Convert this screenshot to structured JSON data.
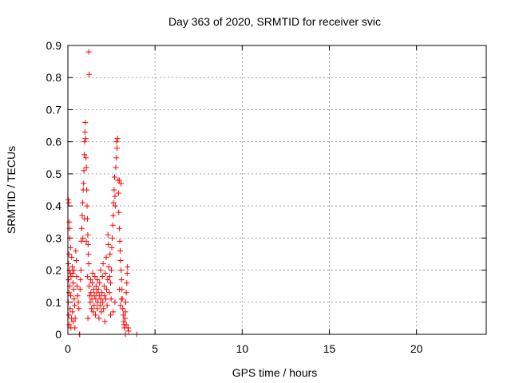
{
  "chart_data": {
    "type": "scatter",
    "title": "Day 363 of 2020, SRMTID for receiver svic",
    "xlabel": "GPS time / hours",
    "ylabel": "SRMTID / TECUs",
    "xlim": [
      0,
      24
    ],
    "ylim": [
      0,
      0.9
    ],
    "xticks": [
      0,
      5,
      10,
      15,
      20
    ],
    "xtick_labels": [
      "0",
      "5",
      "10",
      "15",
      "20"
    ],
    "yticks": [
      0,
      0.1,
      0.2,
      0.3,
      0.4,
      0.5,
      0.6,
      0.7,
      0.8,
      0.9
    ],
    "ytick_labels": [
      "0",
      "0.1",
      "0.2",
      "0.3",
      "0.4",
      "0.5",
      "0.6",
      "0.7",
      "0.8",
      "0.9"
    ],
    "grid": true,
    "marker": "+",
    "color": "#ff0000",
    "series": [
      {
        "name": "svic",
        "points": [
          [
            0.02,
            0.42
          ],
          [
            0.05,
            0.41
          ],
          [
            0.08,
            0.35
          ],
          [
            0.1,
            0.33
          ],
          [
            0.12,
            0.3
          ],
          [
            0.15,
            0.27
          ],
          [
            0.06,
            0.25
          ],
          [
            0.03,
            0.22
          ],
          [
            0.09,
            0.2
          ],
          [
            0.14,
            0.19
          ],
          [
            0.18,
            0.18
          ],
          [
            0.04,
            0.17
          ],
          [
            0.11,
            0.15
          ],
          [
            0.07,
            0.13
          ],
          [
            0.16,
            0.12
          ],
          [
            0.02,
            0.1
          ],
          [
            0.13,
            0.08
          ],
          [
            0.05,
            0.06
          ],
          [
            0.2,
            0.05
          ],
          [
            0.08,
            0.03
          ],
          [
            0.17,
            0.02
          ],
          [
            0.22,
            0.24
          ],
          [
            0.25,
            0.21
          ],
          [
            0.28,
            0.19
          ],
          [
            0.3,
            0.16
          ],
          [
            0.33,
            0.14
          ],
          [
            0.36,
            0.11
          ],
          [
            0.39,
            0.09
          ],
          [
            0.26,
            0.07
          ],
          [
            0.42,
            0.05
          ],
          [
            0.45,
            0.26
          ],
          [
            0.48,
            0.23
          ],
          [
            0.35,
            0.2
          ],
          [
            0.5,
            0.18
          ],
          [
            0.53,
            0.15
          ],
          [
            0.56,
            0.12
          ],
          [
            0.31,
            0.04
          ],
          [
            0.6,
            0.1
          ],
          [
            0.63,
            0.08
          ],
          [
            0.4,
            0.02
          ],
          [
            0.66,
            0.0
          ],
          [
            0.68,
            0.0
          ],
          [
            0.7,
            0.14
          ],
          [
            0.72,
            0.17
          ],
          [
            0.75,
            0.2
          ],
          [
            0.78,
            0.29
          ],
          [
            0.8,
            0.33
          ],
          [
            0.82,
            0.37
          ],
          [
            0.85,
            0.41
          ],
          [
            0.88,
            0.45
          ],
          [
            0.9,
            0.47
          ],
          [
            0.92,
            0.51
          ],
          [
            0.94,
            0.56
          ],
          [
            0.96,
            0.6
          ],
          [
            0.98,
            0.63
          ],
          [
            1.0,
            0.66
          ],
          [
            1.02,
            0.61
          ],
          [
            1.04,
            0.55
          ],
          [
            1.06,
            0.52
          ],
          [
            1.08,
            0.45
          ],
          [
            1.1,
            0.4
          ],
          [
            1.12,
            0.36
          ],
          [
            1.14,
            0.31
          ],
          [
            1.16,
            0.28
          ],
          [
            1.18,
            0.25
          ],
          [
            1.2,
            0.22
          ],
          [
            0.86,
            0.3
          ],
          [
            0.95,
            0.36
          ],
          [
            1.05,
            0.29
          ],
          [
            1.13,
            0.18
          ],
          [
            1.22,
            0.15
          ],
          [
            1.15,
            0.05
          ],
          [
            1.2,
            0.88
          ],
          [
            1.22,
            0.81
          ],
          [
            1.25,
            0.12
          ],
          [
            1.28,
            0.1
          ],
          [
            1.3,
            0.17
          ],
          [
            1.32,
            0.13
          ],
          [
            1.35,
            0.08
          ],
          [
            1.38,
            0.11
          ],
          [
            1.4,
            0.16
          ],
          [
            1.42,
            0.19
          ],
          [
            1.45,
            0.07
          ],
          [
            1.48,
            0.14
          ],
          [
            1.5,
            0.09
          ],
          [
            1.52,
            0.12
          ],
          [
            1.55,
            0.18
          ],
          [
            1.58,
            0.06
          ],
          [
            1.6,
            0.11
          ],
          [
            1.62,
            0.15
          ],
          [
            1.65,
            0.13
          ],
          [
            1.68,
            0.08
          ],
          [
            1.7,
            0.17
          ],
          [
            1.72,
            0.1
          ],
          [
            1.75,
            0.14
          ],
          [
            1.78,
            0.05
          ],
          [
            1.8,
            0.12
          ],
          [
            1.82,
            0.16
          ],
          [
            1.85,
            0.09
          ],
          [
            1.88,
            0.2
          ],
          [
            1.9,
            0.11
          ],
          [
            1.92,
            0.07
          ],
          [
            1.95,
            0.13
          ],
          [
            1.98,
            0.18
          ],
          [
            2.0,
            0.1
          ],
          [
            2.02,
            0.22
          ],
          [
            2.05,
            0.08
          ],
          [
            2.08,
            0.15
          ],
          [
            2.1,
            0.12
          ],
          [
            2.12,
            0.04
          ],
          [
            2.15,
            0.19
          ],
          [
            2.18,
            0.11
          ],
          [
            2.2,
            0.24
          ],
          [
            2.22,
            0.14
          ],
          [
            2.25,
            0.09
          ],
          [
            2.28,
            0.17
          ],
          [
            2.3,
            0.31
          ],
          [
            2.32,
            0.28
          ],
          [
            2.35,
            0.21
          ],
          [
            2.38,
            0.13
          ],
          [
            2.4,
            0.18
          ],
          [
            2.42,
            0.25
          ],
          [
            2.45,
            0.16
          ],
          [
            2.48,
            0.11
          ],
          [
            2.5,
            0.2
          ],
          [
            2.52,
            0.27
          ],
          [
            2.55,
            0.3
          ],
          [
            2.58,
            0.34
          ],
          [
            2.6,
            0.37
          ],
          [
            2.62,
            0.41
          ],
          [
            2.65,
            0.45
          ],
          [
            2.68,
            0.49
          ],
          [
            2.7,
            0.43
          ],
          [
            2.72,
            0.4
          ],
          [
            2.75,
            0.52
          ],
          [
            2.78,
            0.55
          ],
          [
            2.8,
            0.6
          ],
          [
            2.82,
            0.58
          ],
          [
            2.85,
            0.61
          ],
          [
            2.88,
            0.48
          ],
          [
            2.9,
            0.44
          ],
          [
            2.92,
            0.38
          ],
          [
            2.95,
            0.33
          ],
          [
            2.98,
            0.29
          ],
          [
            3.0,
            0.26
          ],
          [
            3.02,
            0.23
          ],
          [
            3.05,
            0.2
          ],
          [
            3.08,
            0.17
          ],
          [
            3.1,
            0.14
          ],
          [
            3.12,
            0.11
          ],
          [
            3.15,
            0.08
          ],
          [
            3.18,
            0.06
          ],
          [
            3.2,
            0.04
          ],
          [
            3.22,
            0.03
          ],
          [
            3.25,
            0.02
          ],
          [
            3.28,
            0.05
          ],
          [
            3.3,
            0.07
          ],
          [
            3.32,
            0.1
          ],
          [
            3.35,
            0.13
          ],
          [
            3.38,
            0.16
          ],
          [
            3.4,
            0.19
          ],
          [
            3.42,
            0.21
          ],
          [
            3.45,
            0.02
          ],
          [
            3.48,
            0.01
          ],
          [
            3.3,
            0.0
          ],
          [
            3.35,
            0.03
          ],
          [
            2.95,
            0.48
          ],
          [
            3.05,
            0.47
          ],
          [
            2.96,
            0.14
          ],
          [
            3.02,
            0.09
          ],
          [
            3.08,
            0.11
          ],
          [
            2.7,
            0.1
          ],
          [
            2.6,
            0.07
          ],
          [
            2.45,
            0.06
          ],
          [
            3.95,
            0.0
          ]
        ]
      }
    ]
  }
}
